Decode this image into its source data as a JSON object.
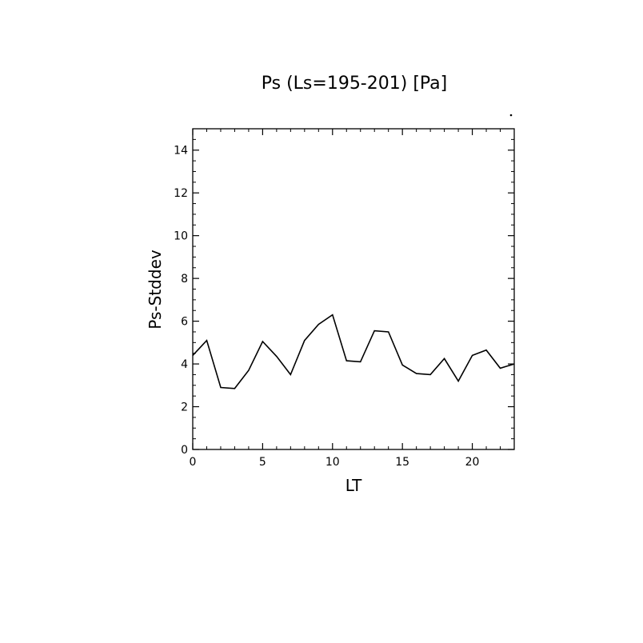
{
  "chart_data": {
    "type": "line",
    "title": "Ps (Ls=195-201) [Pa]",
    "xlabel": "LT",
    "ylabel": "Ps-Stddev",
    "xlim": [
      0,
      23
    ],
    "ylim": [
      0,
      15
    ],
    "xticks": [
      0,
      5,
      10,
      15,
      20
    ],
    "xtick_labels": [
      "0",
      "5",
      "10",
      "15",
      "20"
    ],
    "yticks": [
      0,
      2,
      4,
      6,
      8,
      10,
      12,
      14
    ],
    "ytick_labels": [
      "0",
      "2",
      "4",
      "6",
      "8",
      "10",
      "12",
      "14"
    ],
    "grid": false,
    "series": [
      {
        "x": [
          0,
          1,
          2,
          3,
          4,
          5,
          6,
          7,
          8,
          9,
          10,
          11,
          12,
          13,
          14,
          15,
          16,
          17,
          18,
          19,
          20,
          21,
          22,
          23
        ],
        "values": [
          4.4,
          5.1,
          2.9,
          2.85,
          3.7,
          5.05,
          4.35,
          3.5,
          5.1,
          5.85,
          6.3,
          4.15,
          4.1,
          5.55,
          5.5,
          3.95,
          3.55,
          3.5,
          4.25,
          3.2,
          4.4,
          4.65,
          3.8,
          4.0
        ],
        "color": "#000000"
      }
    ]
  }
}
